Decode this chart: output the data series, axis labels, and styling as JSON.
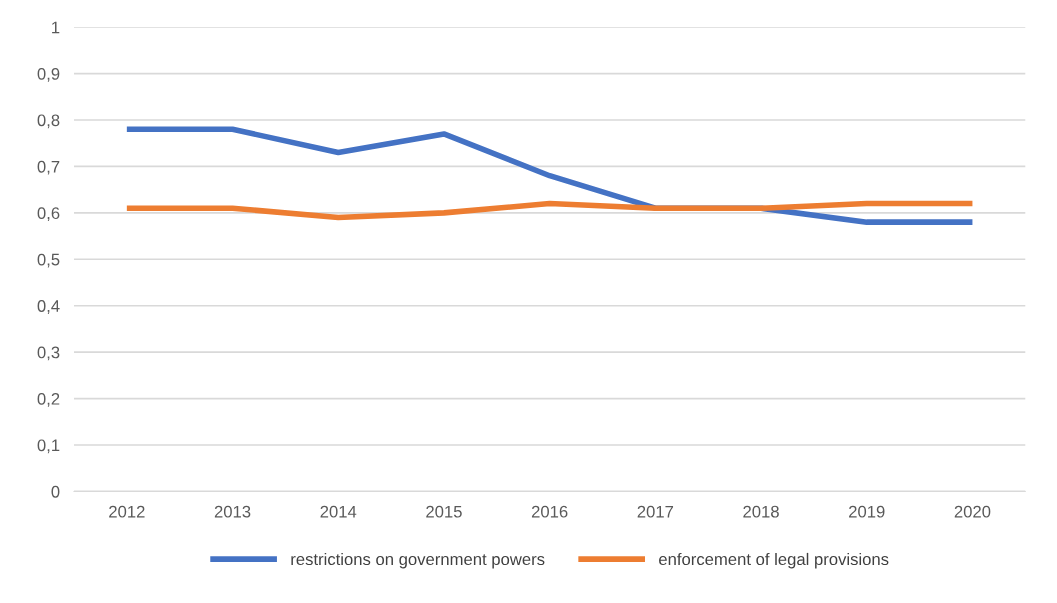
{
  "chart_data": {
    "type": "line",
    "categories": [
      "2012",
      "2013",
      "2014",
      "2015",
      "2016",
      "2017",
      "2018",
      "2019",
      "2020"
    ],
    "series": [
      {
        "name": "restrictions on government powers",
        "color": "#4472c4",
        "values": [
          0.78,
          0.78,
          0.73,
          0.77,
          0.68,
          0.61,
          0.61,
          0.58,
          0.58
        ]
      },
      {
        "name": "enforcement of legal provisions",
        "color": "#ed7d31",
        "values": [
          0.61,
          0.61,
          0.59,
          0.6,
          0.62,
          0.61,
          0.61,
          0.62,
          0.62
        ]
      }
    ],
    "ylim": [
      0,
      1
    ],
    "yticks": [
      0,
      {
        "value": 0.1,
        "label": "0,1"
      },
      {
        "value": 0.2,
        "label": "0,2"
      },
      {
        "value": 0.3,
        "label": "0,3"
      },
      {
        "value": 0.4,
        "label": "0,4"
      },
      {
        "value": 0.5,
        "label": "0,5"
      },
      {
        "value": 0.6,
        "label": "0,6"
      },
      {
        "value": 0.7,
        "label": "0,7"
      },
      {
        "value": 0.8,
        "label": "0,8"
      },
      {
        "value": 0.9,
        "label": "0,9"
      },
      1
    ],
    "grid": "y",
    "legend": "bottom",
    "marker": "none",
    "line_style": "solid"
  }
}
